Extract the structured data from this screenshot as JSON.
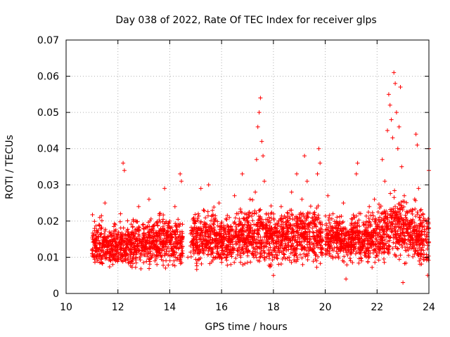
{
  "chart_data": {
    "type": "scatter",
    "title": "Day 038 of 2022, Rate Of TEC Index for receiver glps",
    "xlabel": "GPS time / hours",
    "ylabel": "ROTI / TECUs",
    "xlim": [
      10,
      24
    ],
    "ylim": [
      0,
      0.07
    ],
    "xticks": [
      "10",
      "12",
      "14",
      "16",
      "18",
      "20",
      "22",
      "24"
    ],
    "yticks": [
      "0",
      "0.01",
      "0.02",
      "0.03",
      "0.04",
      "0.05",
      "0.06",
      "0.07"
    ],
    "grid": true,
    "marker": "plus",
    "color": "#ff0000",
    "series": [
      {
        "name": "ROTI",
        "points": [
          [
            11.0,
            0.012
          ],
          [
            11.1,
            0.018
          ],
          [
            11.2,
            0.009
          ],
          [
            11.3,
            0.021
          ],
          [
            11.4,
            0.014
          ],
          [
            11.5,
            0.025
          ],
          [
            11.6,
            0.011
          ],
          [
            11.7,
            0.016
          ],
          [
            11.8,
            0.008
          ],
          [
            11.9,
            0.019
          ],
          [
            12.0,
            0.013
          ],
          [
            12.1,
            0.022
          ],
          [
            12.2,
            0.036
          ],
          [
            12.25,
            0.034
          ],
          [
            12.3,
            0.012
          ],
          [
            12.4,
            0.017
          ],
          [
            12.5,
            0.009
          ],
          [
            12.6,
            0.02
          ],
          [
            12.7,
            0.015
          ],
          [
            12.8,
            0.024
          ],
          [
            12.9,
            0.011
          ],
          [
            13.0,
            0.018
          ],
          [
            13.1,
            0.013
          ],
          [
            13.2,
            0.026
          ],
          [
            13.3,
            0.01
          ],
          [
            13.4,
            0.019
          ],
          [
            13.5,
            0.016
          ],
          [
            13.6,
            0.022
          ],
          [
            13.7,
            0.012
          ],
          [
            13.8,
            0.029
          ],
          [
            13.9,
            0.014
          ],
          [
            14.0,
            0.02
          ],
          [
            14.1,
            0.011
          ],
          [
            14.2,
            0.024
          ],
          [
            14.3,
            0.017
          ],
          [
            14.4,
            0.033
          ],
          [
            14.45,
            0.031
          ],
          [
            14.5,
            0.013
          ],
          [
            14.7,
            0.01
          ],
          [
            14.9,
            0.018
          ],
          [
            15.0,
            0.014
          ],
          [
            15.1,
            0.022
          ],
          [
            15.2,
            0.029
          ],
          [
            15.3,
            0.012
          ],
          [
            15.4,
            0.017
          ],
          [
            15.5,
            0.03
          ],
          [
            15.6,
            0.011
          ],
          [
            15.7,
            0.02
          ],
          [
            15.8,
            0.016
          ],
          [
            15.9,
            0.025
          ],
          [
            16.0,
            0.013
          ],
          [
            16.1,
            0.018
          ],
          [
            16.2,
            0.01
          ],
          [
            16.3,
            0.021
          ],
          [
            16.4,
            0.015
          ],
          [
            16.5,
            0.027
          ],
          [
            16.6,
            0.012
          ],
          [
            16.7,
            0.019
          ],
          [
            16.8,
            0.033
          ],
          [
            16.9,
            0.014
          ],
          [
            17.0,
            0.021
          ],
          [
            17.1,
            0.026
          ],
          [
            17.2,
            0.011
          ],
          [
            17.3,
            0.028
          ],
          [
            17.35,
            0.037
          ],
          [
            17.4,
            0.046
          ],
          [
            17.45,
            0.05
          ],
          [
            17.5,
            0.054
          ],
          [
            17.55,
            0.042
          ],
          [
            17.6,
            0.038
          ],
          [
            17.65,
            0.031
          ],
          [
            17.7,
            0.018
          ],
          [
            17.8,
            0.012
          ],
          [
            17.9,
            0.022
          ],
          [
            18.0,
            0.005
          ],
          [
            18.1,
            0.017
          ],
          [
            18.2,
            0.013
          ],
          [
            18.3,
            0.024
          ],
          [
            18.4,
            0.01
          ],
          [
            18.5,
            0.019
          ],
          [
            18.6,
            0.015
          ],
          [
            18.7,
            0.028
          ],
          [
            18.8,
            0.012
          ],
          [
            18.9,
            0.033
          ],
          [
            19.0,
            0.018
          ],
          [
            19.1,
            0.026
          ],
          [
            19.2,
            0.038
          ],
          [
            19.3,
            0.031
          ],
          [
            19.4,
            0.014
          ],
          [
            19.5,
            0.021
          ],
          [
            19.6,
            0.011
          ],
          [
            19.7,
            0.033
          ],
          [
            19.75,
            0.04
          ],
          [
            19.8,
            0.036
          ],
          [
            19.9,
            0.017
          ],
          [
            20.0,
            0.012
          ],
          [
            20.1,
            0.027
          ],
          [
            20.2,
            0.015
          ],
          [
            20.3,
            0.022
          ],
          [
            20.4,
            0.01
          ],
          [
            20.5,
            0.018
          ],
          [
            20.6,
            0.013
          ],
          [
            20.7,
            0.025
          ],
          [
            20.8,
            0.004
          ],
          [
            20.9,
            0.016
          ],
          [
            21.0,
            0.011
          ],
          [
            21.1,
            0.021
          ],
          [
            21.2,
            0.033
          ],
          [
            21.25,
            0.036
          ],
          [
            21.3,
            0.014
          ],
          [
            21.4,
            0.009
          ],
          [
            21.5,
            0.019
          ],
          [
            21.6,
            0.012
          ],
          [
            21.7,
            0.024
          ],
          [
            21.8,
            0.016
          ],
          [
            21.9,
            0.026
          ],
          [
            22.0,
            0.013
          ],
          [
            22.1,
            0.02
          ],
          [
            22.2,
            0.037
          ],
          [
            22.3,
            0.031
          ],
          [
            22.4,
            0.045
          ],
          [
            22.45,
            0.055
          ],
          [
            22.5,
            0.052
          ],
          [
            22.55,
            0.048
          ],
          [
            22.6,
            0.043
          ],
          [
            22.65,
            0.061
          ],
          [
            22.7,
            0.058
          ],
          [
            22.75,
            0.05
          ],
          [
            22.8,
            0.04
          ],
          [
            22.85,
            0.046
          ],
          [
            22.9,
            0.057
          ],
          [
            22.95,
            0.035
          ],
          [
            23.0,
            0.003
          ],
          [
            23.05,
            0.027
          ],
          [
            23.1,
            0.019
          ],
          [
            23.2,
            0.012
          ],
          [
            23.3,
            0.023
          ],
          [
            23.4,
            0.015
          ],
          [
            23.5,
            0.044
          ],
          [
            23.55,
            0.041
          ],
          [
            23.6,
            0.029
          ],
          [
            23.7,
            0.017
          ],
          [
            23.8,
            0.01
          ],
          [
            23.9,
            0.02
          ],
          [
            24.0,
            0.04
          ],
          [
            24.0,
            0.034
          ],
          [
            24.0,
            0.014
          ],
          [
            23.95,
            0.005
          ]
        ],
        "dense_bands": [
          {
            "x_from": 11.0,
            "x_to": 11.5,
            "y_min": 0.005,
            "y_max": 0.022
          },
          {
            "x_from": 11.5,
            "x_to": 12.0,
            "y_min": 0.006,
            "y_max": 0.021
          },
          {
            "x_from": 12.0,
            "x_to": 12.5,
            "y_min": 0.004,
            "y_max": 0.021
          },
          {
            "x_from": 12.5,
            "x_to": 13.0,
            "y_min": 0.005,
            "y_max": 0.022
          },
          {
            "x_from": 13.0,
            "x_to": 13.5,
            "y_min": 0.006,
            "y_max": 0.023
          },
          {
            "x_from": 13.5,
            "x_to": 14.0,
            "y_min": 0.005,
            "y_max": 0.024
          },
          {
            "x_from": 14.0,
            "x_to": 14.5,
            "y_min": 0.005,
            "y_max": 0.023
          },
          {
            "x_from": 14.8,
            "x_to": 15.5,
            "y_min": 0.006,
            "y_max": 0.025
          },
          {
            "x_from": 15.5,
            "x_to": 16.0,
            "y_min": 0.006,
            "y_max": 0.025
          },
          {
            "x_from": 16.0,
            "x_to": 16.5,
            "y_min": 0.005,
            "y_max": 0.024
          },
          {
            "x_from": 16.5,
            "x_to": 17.0,
            "y_min": 0.006,
            "y_max": 0.026
          },
          {
            "x_from": 17.0,
            "x_to": 17.5,
            "y_min": 0.005,
            "y_max": 0.027
          },
          {
            "x_from": 17.5,
            "x_to": 18.0,
            "y_min": 0.005,
            "y_max": 0.026
          },
          {
            "x_from": 18.0,
            "x_to": 18.5,
            "y_min": 0.006,
            "y_max": 0.025
          },
          {
            "x_from": 18.5,
            "x_to": 19.0,
            "y_min": 0.006,
            "y_max": 0.026
          },
          {
            "x_from": 19.0,
            "x_to": 19.5,
            "y_min": 0.006,
            "y_max": 0.027
          },
          {
            "x_from": 19.5,
            "x_to": 19.9,
            "y_min": 0.005,
            "y_max": 0.026
          },
          {
            "x_from": 20.0,
            "x_to": 20.5,
            "y_min": 0.007,
            "y_max": 0.024
          },
          {
            "x_from": 20.5,
            "x_to": 21.0,
            "y_min": 0.007,
            "y_max": 0.023
          },
          {
            "x_from": 21.0,
            "x_to": 21.5,
            "y_min": 0.006,
            "y_max": 0.024
          },
          {
            "x_from": 21.5,
            "x_to": 22.0,
            "y_min": 0.006,
            "y_max": 0.025
          },
          {
            "x_from": 22.0,
            "x_to": 22.5,
            "y_min": 0.006,
            "y_max": 0.028
          },
          {
            "x_from": 22.5,
            "x_to": 23.0,
            "y_min": 0.006,
            "y_max": 0.03
          },
          {
            "x_from": 23.0,
            "x_to": 23.5,
            "y_min": 0.006,
            "y_max": 0.028
          },
          {
            "x_from": 23.5,
            "x_to": 24.0,
            "y_min": 0.005,
            "y_max": 0.026
          }
        ]
      }
    ]
  }
}
